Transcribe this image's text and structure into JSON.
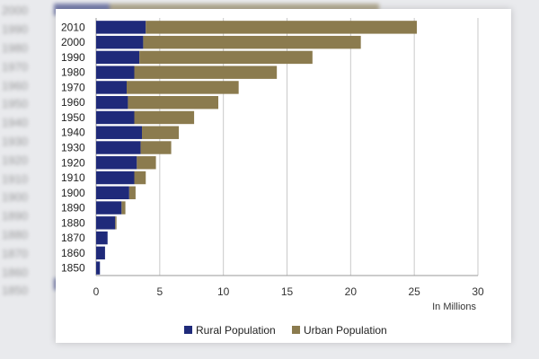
{
  "chart_data": {
    "type": "bar",
    "orientation": "horizontal",
    "stacked": true,
    "categories": [
      "2010",
      "2000",
      "1990",
      "1980",
      "1970",
      "1960",
      "1950",
      "1940",
      "1930",
      "1920",
      "1910",
      "1900",
      "1890",
      "1880",
      "1870",
      "1860",
      "1850"
    ],
    "series": [
      {
        "name": "Rural Population",
        "color": "#1f2a7a",
        "values": [
          3.9,
          3.7,
          3.4,
          3.0,
          2.4,
          2.5,
          3.0,
          3.6,
          3.5,
          3.2,
          3.0,
          2.6,
          2.0,
          1.5,
          0.9,
          0.7,
          0.3
        ]
      },
      {
        "name": "Urban Population",
        "color": "#8b7b4e",
        "values": [
          21.3,
          17.1,
          13.6,
          11.2,
          8.8,
          7.1,
          4.7,
          2.9,
          2.4,
          1.5,
          0.9,
          0.5,
          0.3,
          0.1,
          0.0,
          0.0,
          0.0
        ]
      }
    ],
    "xlim": [
      0,
      30
    ],
    "xticks": [
      0,
      5,
      10,
      15,
      20,
      25,
      30
    ],
    "xlabel": "In Millions",
    "grid": "vertical",
    "legend_position": "bottom"
  },
  "legend": {
    "rural_label": "Rural Population",
    "urban_label": "Urban Population"
  }
}
